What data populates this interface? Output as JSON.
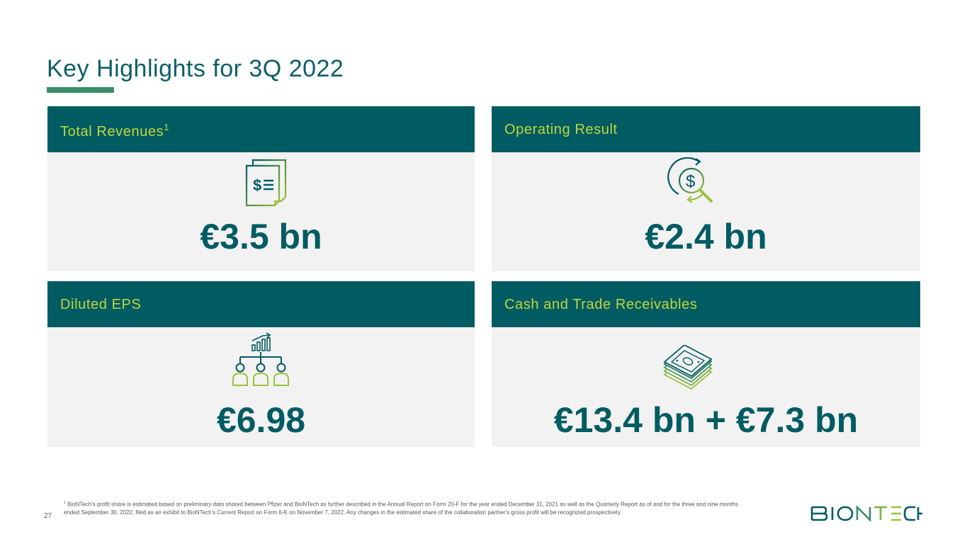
{
  "slide": {
    "title": "Key Highlights for 3Q 2022",
    "page_number": "27"
  },
  "cards": [
    {
      "label": "Total Revenues",
      "superscript": "1",
      "icon": "revenue-document-icon",
      "value": "€3.5 bn"
    },
    {
      "label": "Operating Result",
      "icon": "dollar-magnifier-icon",
      "value": "€2.4 bn"
    },
    {
      "label": "Diluted EPS",
      "icon": "shareholders-chart-icon",
      "value": "€6.98"
    },
    {
      "label": "Cash and Trade Receivables",
      "icon": "cash-stack-icon",
      "value": "€13.4 bn + €7.3 bn"
    }
  ],
  "footnote": {
    "marker": "1",
    "text": "BioNTech's profit share is estimated based on preliminary data shared between Pfizer and BioNTech as further described in the Annual Report on Form 20-F for the year ended December 31, 2021 as well as the Quarterly Report as of and for the three and nine months ended September 30, 2022, filed as an exhibit to BioNTech's Current Report on Form 6-K on November 7, 2022. Any changes in the estimated share of the collaboration partner's gross profit will be recognized prospectively."
  },
  "logo": {
    "text": "BIONTECH"
  },
  "colors": {
    "header_bg": "#005c62",
    "header_text": "#c0d63a",
    "value_text": "#005c62",
    "title_text": "#0f5f66",
    "title_underline": "#3a8d6a",
    "card_bg": "#f2f2f2"
  }
}
